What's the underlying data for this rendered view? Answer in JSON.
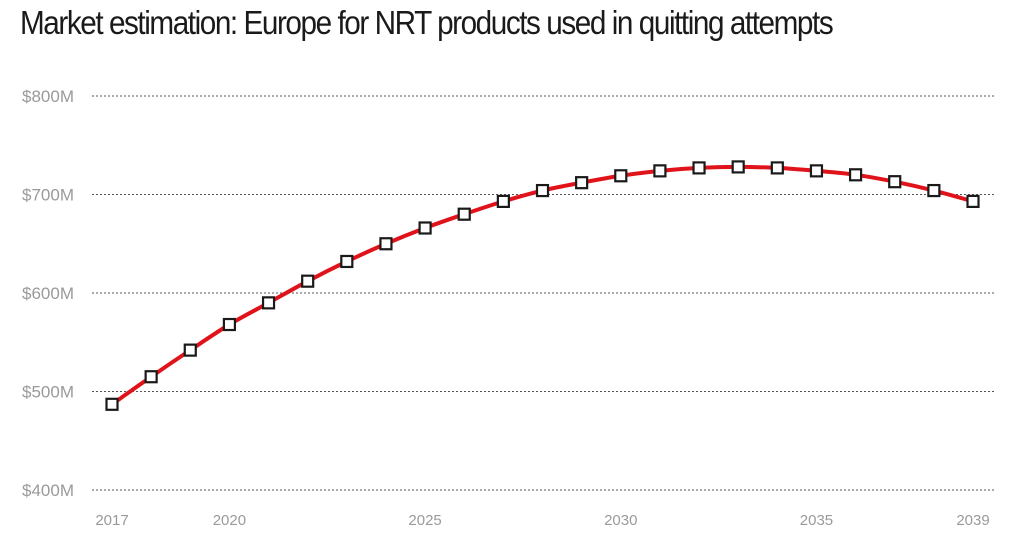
{
  "chart_data": {
    "type": "line",
    "title": "Market estimation: Europe for NRT products used in quitting attempts",
    "xlabel": "",
    "ylabel": "",
    "x": [
      2017,
      2018,
      2019,
      2020,
      2021,
      2022,
      2023,
      2024,
      2025,
      2026,
      2027,
      2028,
      2029,
      2030,
      2031,
      2032,
      2033,
      2034,
      2035,
      2036,
      2037,
      2038,
      2039
    ],
    "x_tick_values": [
      2017,
      2020,
      2025,
      2030,
      2035,
      2039
    ],
    "x_tick_labels": [
      "2017",
      "2020",
      "2025",
      "2030",
      "2035",
      "2039"
    ],
    "y_tick_values": [
      400,
      500,
      600,
      700,
      800
    ],
    "y_tick_labels": [
      "$400M",
      "$500M",
      "$600M",
      "$700M",
      "$800M"
    ],
    "ylim": [
      400,
      800
    ],
    "xlim": [
      2017,
      2039
    ],
    "series": [
      {
        "values": [
          487,
          515,
          542,
          568,
          590,
          612,
          632,
          650,
          666,
          680,
          693,
          704,
          712,
          719,
          724,
          727,
          728,
          727,
          724,
          720,
          713,
          704,
          693
        ]
      }
    ],
    "line_color": "#e0131b",
    "marker_stroke": "#1a1a1a",
    "marker_fill": "#ffffff",
    "grid": true,
    "grid_style": "dotted",
    "legend": "none"
  }
}
